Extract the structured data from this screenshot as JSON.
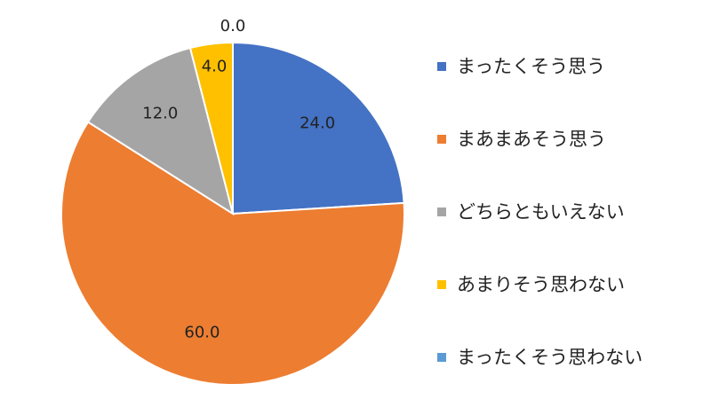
{
  "chart_data": {
    "type": "pie",
    "categories": [
      "まったくそう思う",
      "まあまあそう思う",
      "どちらともいえない",
      "あまりそう思わない",
      "まったくそう思わない"
    ],
    "values": [
      24.0,
      60.0,
      12.0,
      4.0,
      0.0
    ],
    "value_labels": [
      "24.0",
      "60.0",
      "12.0",
      "4.0",
      "0.0"
    ],
    "colors": [
      "#4472C4",
      "#ED7D31",
      "#A5A5A5",
      "#FFC000",
      "#5B9BD5"
    ],
    "start_angle_deg": 0,
    "direction": "clockwise",
    "legend_position": "right"
  }
}
